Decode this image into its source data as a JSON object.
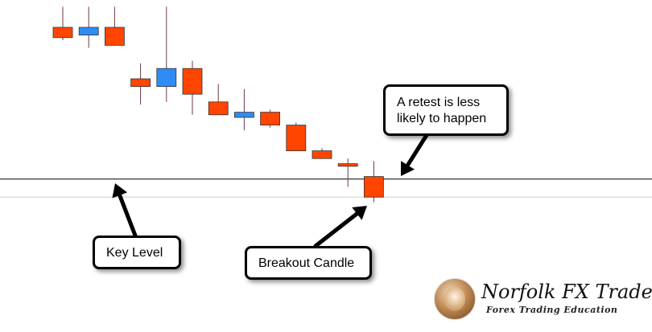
{
  "chart_data": {
    "type": "candlestick",
    "title": "",
    "xlabel": "",
    "ylabel": "",
    "grid": false,
    "ylim": [
      0,
      100
    ],
    "candles": [
      {
        "open": 100,
        "high": 108,
        "low": 95,
        "close": 96
      },
      {
        "open": 97,
        "high": 108,
        "low": 92,
        "close": 100
      },
      {
        "open": 100,
        "high": 108,
        "low": 93,
        "close": 93
      },
      {
        "open": 80,
        "high": 86,
        "low": 70,
        "close": 77
      },
      {
        "open": 77,
        "high": 108,
        "low": 71,
        "close": 84
      },
      {
        "open": 84,
        "high": 87,
        "low": 66,
        "close": 74
      },
      {
        "open": 71,
        "high": 78,
        "low": 66,
        "close": 66
      },
      {
        "open": 65,
        "high": 76,
        "low": 60,
        "close": 67
      },
      {
        "open": 67,
        "high": 68,
        "low": 61,
        "close": 62
      },
      {
        "open": 62,
        "high": 63,
        "low": 52,
        "close": 52
      },
      {
        "open": 52,
        "high": 53,
        "low": 49,
        "close": 49
      },
      {
        "open": 47,
        "high": 49,
        "low": 38,
        "close": 46
      },
      {
        "open": 42,
        "high": 48,
        "low": 32,
        "close": 34
      }
    ],
    "key_level": 41,
    "lower_line": 34,
    "colors": {
      "bullish": "#2f8cf5",
      "bearish": "#ff4500",
      "border": "#333333",
      "wick": "#6b3a4a",
      "line": "#000000",
      "lower_line": "#cfcfcf"
    },
    "annotations": [
      {
        "text": "A retest is less likely to happen",
        "lines": [
          "A retest is less",
          "likely to happen"
        ]
      },
      {
        "text": "Key Level"
      },
      {
        "text": "Breakout Candle"
      }
    ]
  },
  "logo": {
    "name": "Norfolk FX Trader",
    "tagline": "Forex Trading Education",
    "icon": "globe-badge-icon"
  }
}
